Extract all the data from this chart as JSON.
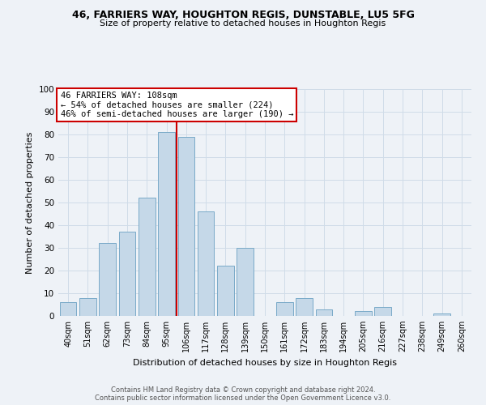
{
  "title1": "46, FARRIERS WAY, HOUGHTON REGIS, DUNSTABLE, LU5 5FG",
  "title2": "Size of property relative to detached houses in Houghton Regis",
  "xlabel": "Distribution of detached houses by size in Houghton Regis",
  "ylabel": "Number of detached properties",
  "bar_labels": [
    "40sqm",
    "51sqm",
    "62sqm",
    "73sqm",
    "84sqm",
    "95sqm",
    "106sqm",
    "117sqm",
    "128sqm",
    "139sqm",
    "150sqm",
    "161sqm",
    "172sqm",
    "183sqm",
    "194sqm",
    "205sqm",
    "216sqm",
    "227sqm",
    "238sqm",
    "249sqm",
    "260sqm"
  ],
  "bar_values": [
    6,
    8,
    32,
    37,
    52,
    81,
    79,
    46,
    22,
    30,
    0,
    6,
    8,
    3,
    0,
    2,
    4,
    0,
    0,
    1,
    0
  ],
  "bar_color": "#c5d8e8",
  "bar_edgecolor": "#7aaac8",
  "marker_color": "#cc0000",
  "annotation_text": "46 FARRIERS WAY: 108sqm\n← 54% of detached houses are smaller (224)\n46% of semi-detached houses are larger (190) →",
  "annotation_box_color": "#ffffff",
  "annotation_box_edgecolor": "#cc0000",
  "ylim": [
    0,
    100
  ],
  "yticks": [
    0,
    10,
    20,
    30,
    40,
    50,
    60,
    70,
    80,
    90,
    100
  ],
  "grid_color": "#d0dce8",
  "background_color": "#eef2f7",
  "footer1": "Contains HM Land Registry data © Crown copyright and database right 2024.",
  "footer2": "Contains public sector information licensed under the Open Government Licence v3.0."
}
